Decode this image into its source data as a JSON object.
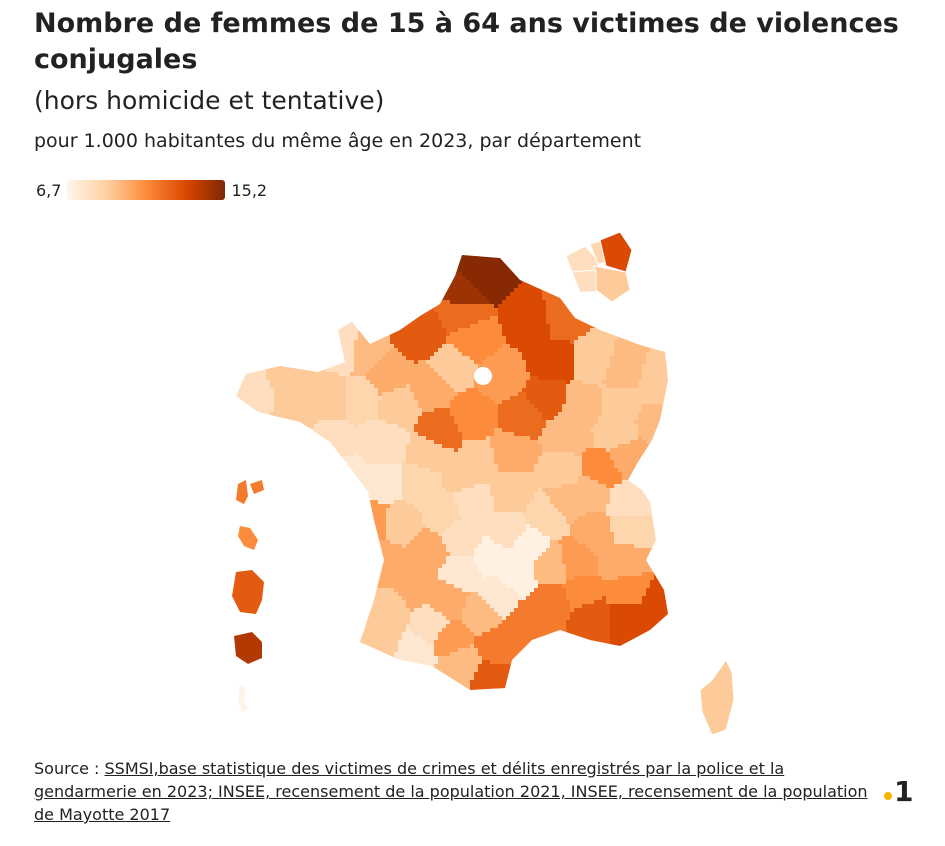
{
  "title": "Nombre de femmes de 15 à 64 ans victimes de violences conjugales",
  "title_line2": "(hors homicide et tentative)",
  "subtitle": "pour 1.000 habitantes du même âge en 2023, par département",
  "legend": {
    "min_label": "6,7",
    "max_label": "15,2"
  },
  "source": {
    "prefix": "Source : ",
    "link_text": "SSMSI,base statistique des victimes de crimes et délits enregistrés par la police et la gendarmerie en 2023; INSEE, recensement de la population 2021, INSEE, recensement de la population de Mayotte 2017"
  },
  "logo": {
    "text": "1",
    "dot_color": "#f7b500"
  },
  "chart_data": {
    "type": "choropleth",
    "min": 6.7,
    "max": 15.2,
    "color_scale": [
      "#fff5eb",
      "#fdd0a2",
      "#fd8d3c",
      "#d94801",
      "#7f2704"
    ],
    "metropole_values": [
      15,
      14.5,
      13,
      12,
      12.5,
      11,
      12,
      13,
      9,
      9.5,
      9,
      9.5,
      9,
      12.5,
      9.5,
      12,
      9.5,
      9,
      10,
      11,
      9,
      10,
      9,
      11,
      10,
      12,
      9,
      9,
      9,
      10,
      9.5,
      8,
      8,
      9,
      9,
      9,
      8.5,
      8,
      8,
      7.5,
      7.5,
      8.5,
      10.5,
      9,
      8.5,
      8,
      9,
      8,
      8.5,
      9.5,
      9.5,
      8,
      8.5,
      10,
      10.5,
      10,
      11,
      13,
      13,
      12.5,
      11,
      11.5,
      9.5,
      7,
      7,
      7,
      8,
      10,
      10,
      9,
      10,
      7.5,
      7.5,
      9.5,
      10,
      8,
      9,
      7.5,
      10.5,
      9.5,
      11.5,
      12.5,
      11.5,
      10.5,
      9
    ],
    "corse_value": 9,
    "outre_mer": {
      "guadeloupe": 11.5,
      "martinique": 11,
      "guyane": 12.5,
      "reunion": 14,
      "mayotte": 6.8
    },
    "ile_de_france_inset": [
      8,
      8.5,
      13,
      9,
      8
    ]
  }
}
